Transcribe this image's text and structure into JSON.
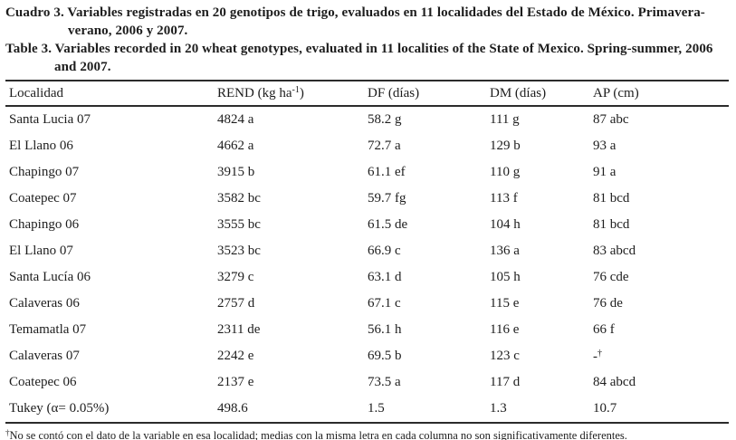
{
  "captions": {
    "spanish": {
      "line1": "Cuadro 3. Variables registradas en 20 genotipos de trigo, evaluados en 11 localidades del Estado de México. Primavera-",
      "line2": "verano, 2006 y 2007."
    },
    "english": {
      "line1": "Table 3. Variables recorded in 20 wheat genotypes, evaluated in 11 localities of the State of Mexico. Spring-summer, 2006",
      "line2": "and 2007."
    }
  },
  "table": {
    "headers": {
      "localidad": "Localidad",
      "rend_pre": "REND (kg ha",
      "rend_sup": "-1",
      "rend_post": ")",
      "df": "DF (días)",
      "dm": "DM (días)",
      "ap": "AP (cm)"
    },
    "rows": [
      {
        "loc": "Santa Lucia 07",
        "rend": "4824 a",
        "df": "58.2 g",
        "dm": "111 g",
        "ap": "87 abc"
      },
      {
        "loc": "El Llano 06",
        "rend": "4662 a",
        "df": "72.7 a",
        "dm": "129 b",
        "ap": "93 a"
      },
      {
        "loc": "Chapingo 07",
        "rend": "3915 b",
        "df": "61.1 ef",
        "dm": "110 g",
        "ap": "91 a"
      },
      {
        "loc": "Coatepec 07",
        "rend": "3582 bc",
        "df": "59.7 fg",
        "dm": "113 f",
        "ap": "81 bcd"
      },
      {
        "loc": "Chapingo 06",
        "rend": "3555 bc",
        "df": "61.5 de",
        "dm": "104 h",
        "ap": "81 bcd"
      },
      {
        "loc": "El Llano 07",
        "rend": "3523 bc",
        "df": "66.9 c",
        "dm": "136 a",
        "ap": "83 abcd"
      },
      {
        "loc": "Santa Lucía 06",
        "rend": "3279 c",
        "df": "63.1 d",
        "dm": "105 h",
        "ap": "76 cde"
      },
      {
        "loc": "Calaveras 06",
        "rend": "2757 d",
        "df": "67.1 c",
        "dm": "115 e",
        "ap": "76 de"
      },
      {
        "loc": "Temamatla 07",
        "rend": "2311 de",
        "df": "56.1 h",
        "dm": "116 e",
        "ap": "66 f"
      },
      {
        "loc": "Calaveras 07",
        "rend": "2242 e",
        "df": "69.5 b",
        "dm": "123 c",
        "ap": "-",
        "ap_sup": "†"
      },
      {
        "loc": "Coatepec 06",
        "rend": "2137 e",
        "df": "73.5 a",
        "dm": "117 d",
        "ap": "84 abcd"
      },
      {
        "loc": "Tukey (α= 0.05%)",
        "rend": "498.6",
        "df": "1.5",
        "dm": "1.3",
        "ap": "10.7"
      }
    ]
  },
  "footnote": {
    "sup": "†",
    "text": "No se contó con el dato de la variable en esa localidad; medias con la misma letra en cada columna no son significativamente diferentes."
  },
  "colors": {
    "text": "#1d1d1d",
    "rule": "#2b2b2b",
    "background": "#ffffff"
  }
}
